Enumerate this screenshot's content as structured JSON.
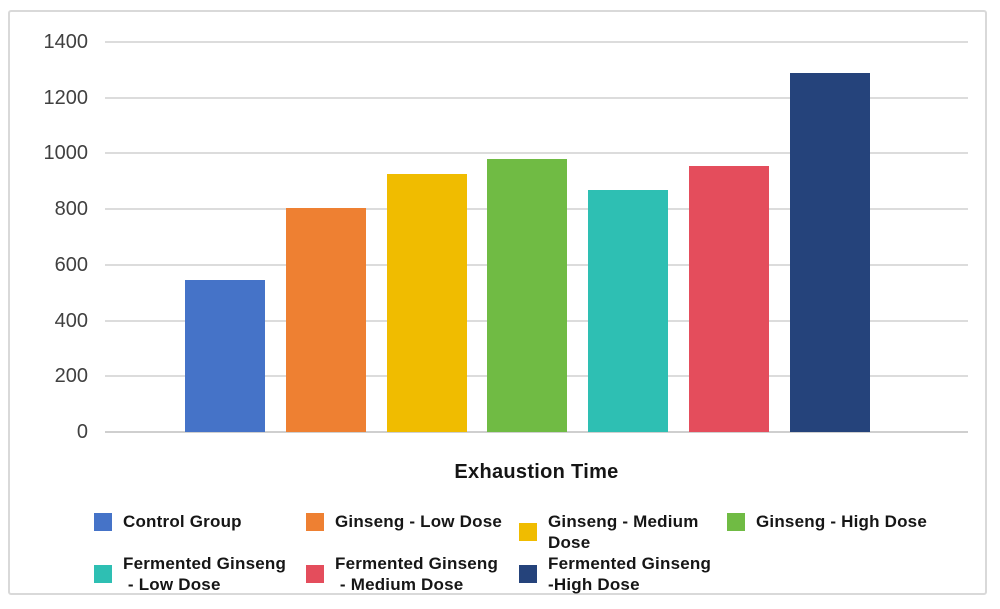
{
  "frame": {
    "background": "#ffffff",
    "border_color": "#d9d9d9"
  },
  "chart_data": {
    "type": "bar",
    "title": "",
    "xlabel": "Exhaustion Time",
    "ylabel": "",
    "categories": [
      "Control Group",
      "Ginseng - Low Dose",
      "Ginseng - Medium Dose",
      "Ginseng - High Dose",
      "Fermented Ginseng - Low Dose",
      "Fermented Ginseng - Medium Dose",
      "Fermented Ginseng - High Dose"
    ],
    "values": [
      545,
      805,
      925,
      980,
      870,
      955,
      1290
    ],
    "colors": [
      "#4573c8",
      "#ee8032",
      "#f0bc00",
      "#70bb44",
      "#2ebfb3",
      "#e44d5c",
      "#25437b"
    ],
    "ylim": [
      0,
      1400
    ],
    "yticks": [
      0,
      200,
      400,
      600,
      800,
      1000,
      1200,
      1400
    ],
    "grid": "horizontal gridlines on",
    "legend_position": "bottom"
  },
  "legend": {
    "rows": [
      [
        {
          "label_lines": [
            "Control Group"
          ],
          "color": "#4573c8"
        },
        {
          "label_lines": [
            "Ginseng - Low Dose"
          ],
          "color": "#ee8032"
        },
        {
          "label_lines": [
            "Ginseng - Medium",
            "Dose"
          ],
          "color": "#f0bc00"
        },
        {
          "label_lines": [
            "Ginseng - High Dose"
          ],
          "color": "#70bb44"
        }
      ],
      [
        {
          "label_lines": [
            "Fermented Ginseng",
            " - Low Dose"
          ],
          "color": "#2ebfb3"
        },
        {
          "label_lines": [
            "Fermented Ginseng",
            " - Medium Dose"
          ],
          "color": "#e44d5c"
        },
        {
          "label_lines": [
            "Fermented Ginseng",
            "-High Dose"
          ],
          "color": "#25437b"
        }
      ]
    ]
  }
}
